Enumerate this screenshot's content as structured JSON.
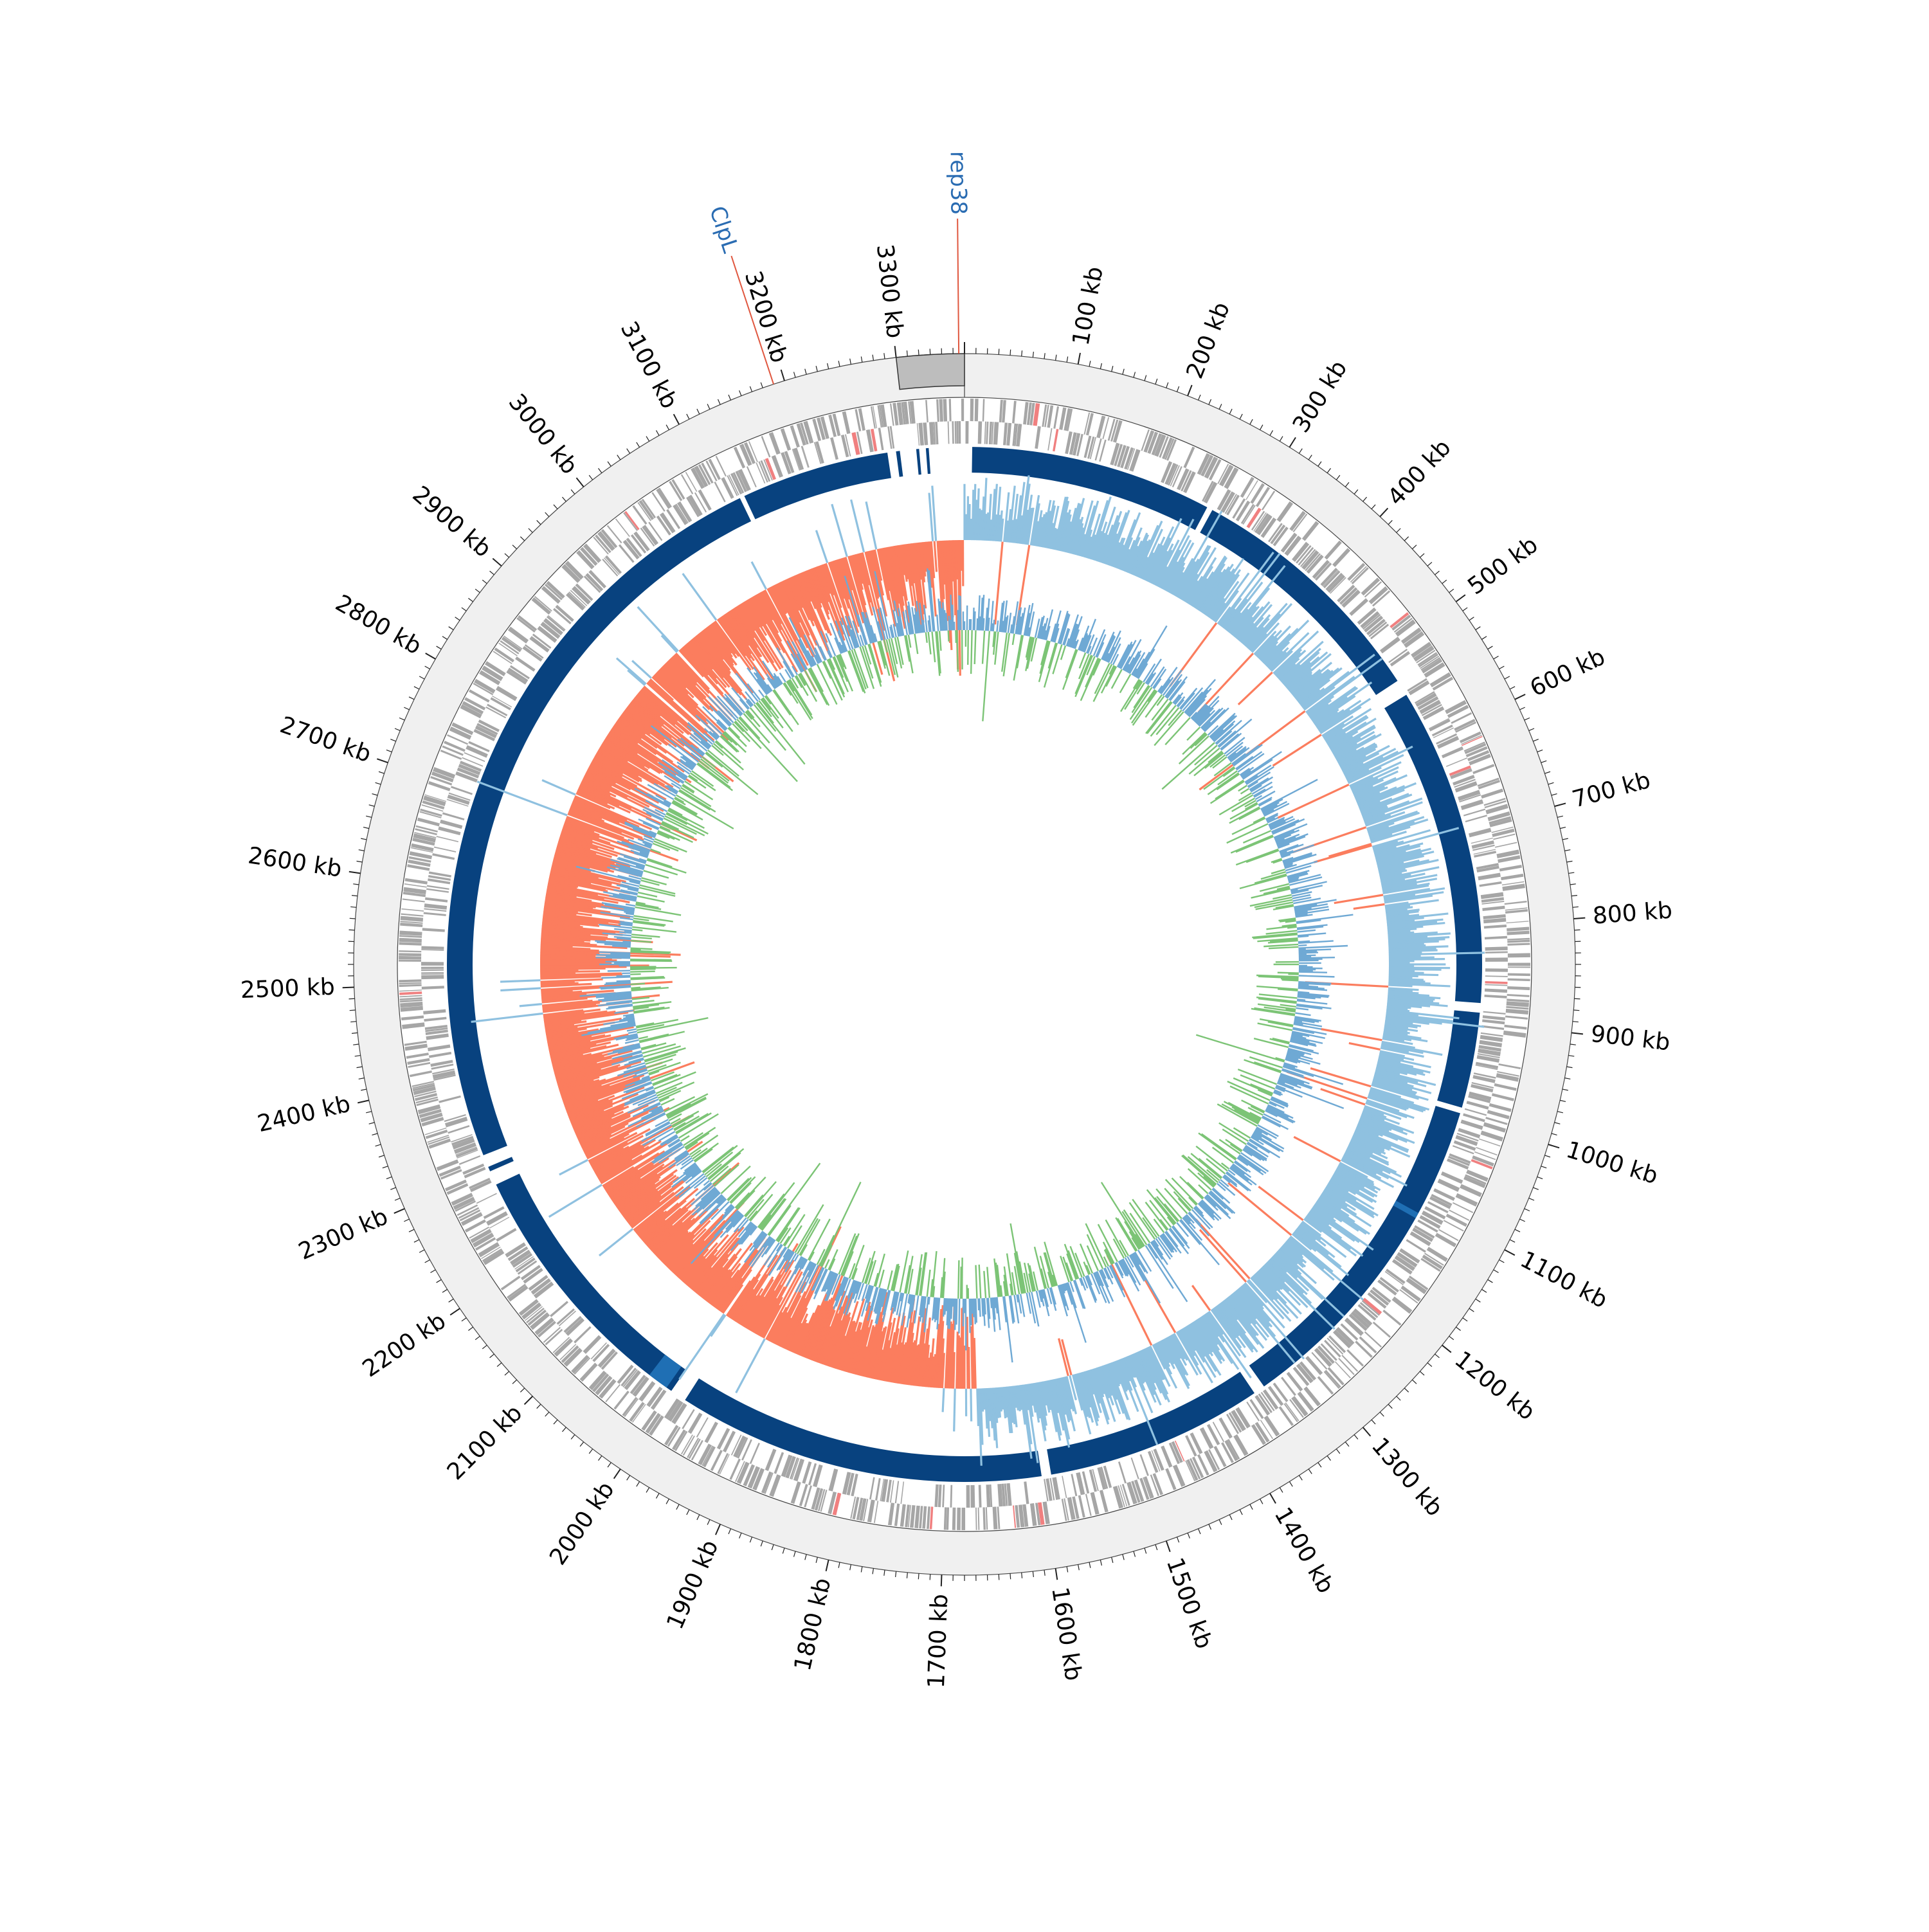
{
  "chart_data": {
    "type": "circular-genome-map",
    "genome_length_kb": 3360,
    "tick_unit": "kb",
    "major_ticks_kb": [
      100,
      200,
      300,
      400,
      500,
      600,
      700,
      800,
      900,
      1000,
      1100,
      1200,
      1300,
      1400,
      1500,
      1600,
      1700,
      1800,
      1900,
      2000,
      2100,
      2200,
      2300,
      2400,
      2500,
      2600,
      2700,
      2800,
      2900,
      3000,
      3100,
      3200,
      3300
    ],
    "tick_labels": [
      "100 kb",
      "200 kb",
      "300 kb",
      "400 kb",
      "500 kb",
      "600 kb",
      "700 kb",
      "800 kb",
      "900 kb",
      "1000 kb",
      "1100 kb",
      "1200 kb",
      "1300 kb",
      "1400 kb",
      "1500 kb",
      "1600 kb",
      "1700 kb",
      "1800 kb",
      "1900 kb",
      "2000 kb",
      "2100 kb",
      "2200 kb",
      "2300 kb",
      "2400 kb",
      "2500 kb",
      "2600 kb",
      "2700 kb",
      "2800 kb",
      "2900 kb",
      "3000 kb",
      "3100 kb",
      "3200 kb",
      "3300 kb"
    ],
    "minor_tick_step_kb": 10,
    "highlighted_region_kb": [
      3300,
      3360
    ],
    "features": [
      {
        "name": "rep38",
        "position_kb": 3355
      },
      {
        "name": "ClpL",
        "position_kb": 3190
      }
    ],
    "alignment_blocks_kb": [
      [
        8,
        261
      ],
      [
        267,
        530
      ],
      [
        547,
        880
      ],
      [
        890,
        990
      ],
      [
        996,
        1350
      ],
      [
        1362,
        1590
      ],
      [
        1600,
        1985
      ],
      [
        2002,
        2285
      ],
      [
        2300,
        2305
      ],
      [
        2318,
        3120
      ],
      [
        3125,
        3280
      ],
      [
        3289,
        3293
      ],
      [
        3310,
        3313
      ],
      [
        3320,
        3323
      ]
    ],
    "gc_skew_sign_change_kb": [
      0,
      1665
    ],
    "colors": {
      "ring_background": "#f0f0f0",
      "highlight": "#bdbdbd",
      "cds": "#a6a6a6",
      "rna_feature": "#f08080",
      "alignment": "#08427f",
      "alignment_light": "#1f6fb4",
      "gc_skew_positive": "#8fc1e0",
      "gc_skew_negative": "#fb7d5e",
      "gc_content_above": "#6fa9d4",
      "gc_content_below": "#7cc476",
      "feature_label": "#2a6cb2",
      "feature_line": "#e0573f"
    },
    "grid": false,
    "legend": "none"
  }
}
